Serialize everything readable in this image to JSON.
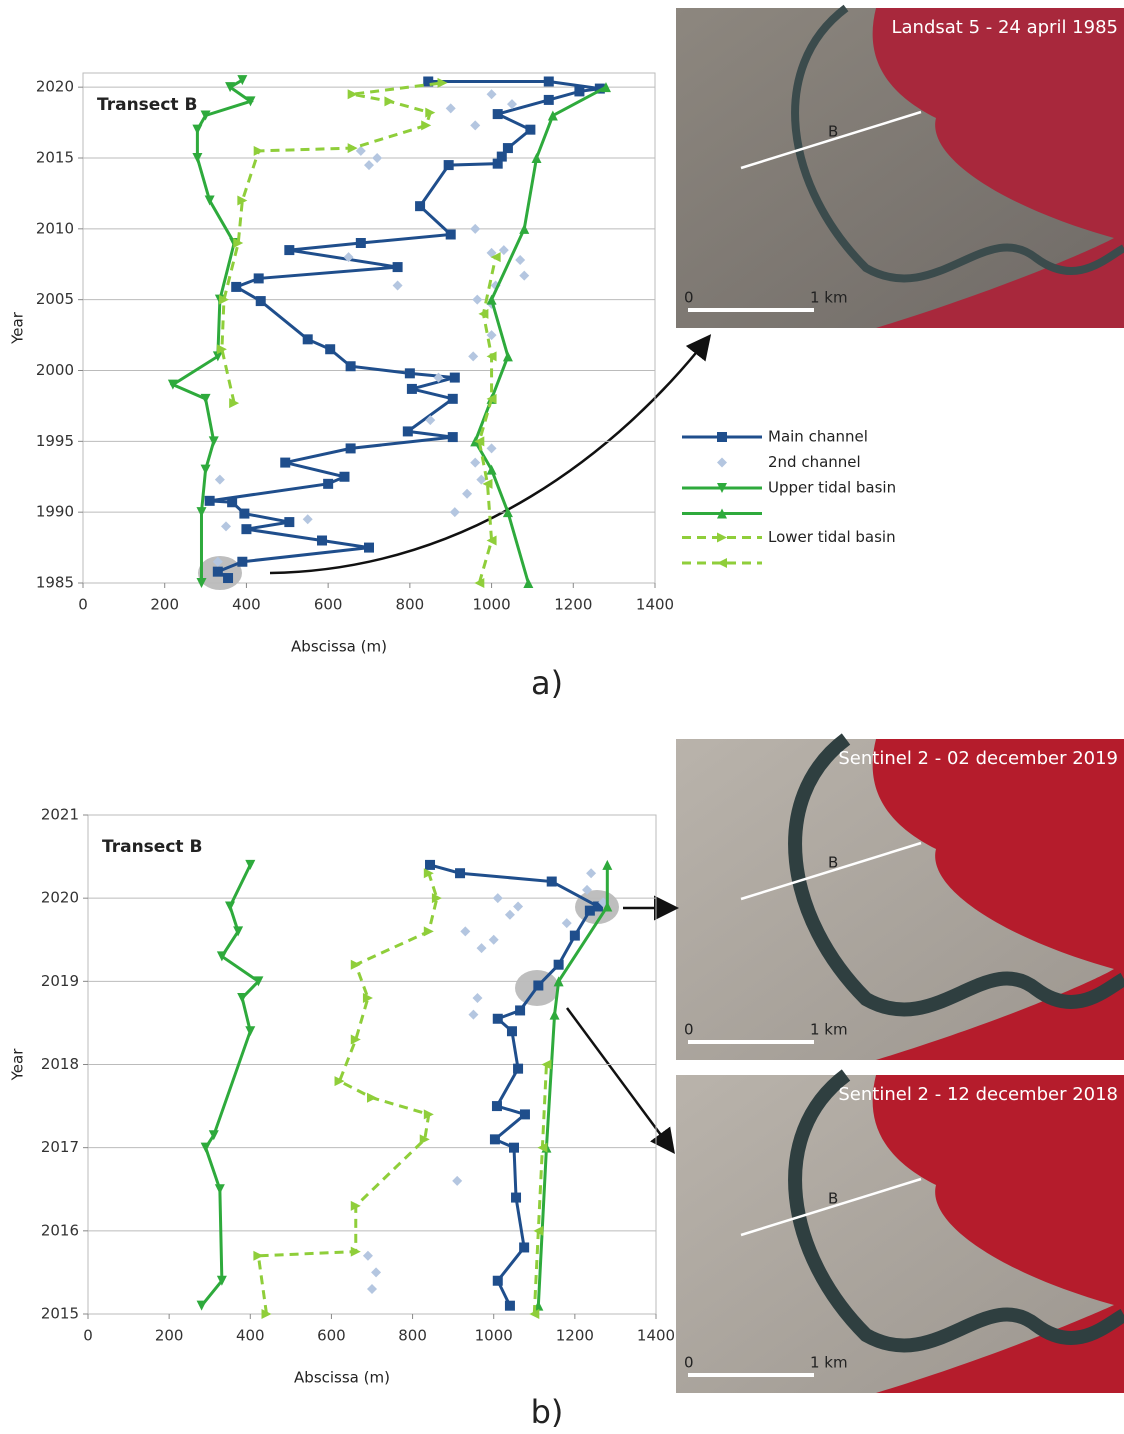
{
  "chart_data": [
    {
      "type": "line",
      "title": "Transect B",
      "x_label": "Abscissa (m)",
      "y_label": "Year",
      "xlim": [
        0,
        1400
      ],
      "xticks": [
        0,
        200,
        400,
        600,
        800,
        1000,
        1200,
        1400
      ],
      "ylim": [
        1985,
        2021
      ],
      "yticks": [
        1985,
        1990,
        1995,
        2000,
        2005,
        2010,
        2015,
        2020
      ],
      "grid": true,
      "legend": "right",
      "series": [
        {
          "name": "Main channel",
          "color": "#1f4e8c",
          "marker": "square",
          "line": true,
          "dash": false,
          "x": [
            355,
            330,
            390,
            700,
            585,
            400,
            505,
            395,
            365,
            310,
            600,
            640,
            495,
            655,
            905,
            795,
            905,
            805,
            910,
            800,
            655,
            605,
            550,
            435,
            375,
            430,
            770,
            505,
            680,
            900,
            825,
            895,
            1015,
            1025,
            1040,
            1095,
            1015,
            1140,
            1215,
            1265,
            1140,
            845
          ],
          "values": [
            1985.35,
            1985.8,
            1986.5,
            1987.5,
            1988,
            1988.8,
            1989.3,
            1989.9,
            1990.7,
            1990.8,
            1992,
            1992.5,
            1993.5,
            1994.5,
            1995.3,
            1995.7,
            1998,
            1998.7,
            1999.5,
            1999.8,
            2000.3,
            2001.5,
            2002.2,
            2004.9,
            2005.9,
            2006.5,
            2007.3,
            2008.5,
            2009,
            2009.6,
            2011.6,
            2014.5,
            2014.6,
            2015.1,
            2015.7,
            2017,
            2018.1,
            2019.1,
            2019.7,
            2019.9,
            2020.4,
            2020.4
          ]
        },
        {
          "name": "2nd channel",
          "color": "#b4c6e0",
          "marker": "diamond",
          "line": false,
          "dash": false,
          "x": [
            330,
            350,
            335,
            550,
            910,
            940,
            975,
            960,
            1000,
            850,
            870,
            955,
            1000,
            965,
            1000,
            1010,
            1080,
            1030,
            1000,
            650,
            770,
            1070,
            960,
            700,
            680,
            720,
            900,
            960,
            1050,
            1000
          ],
          "values": [
            1986.5,
            1989,
            1992.3,
            1989.5,
            1990,
            1991.3,
            1992.3,
            1993.5,
            1994.5,
            1996.5,
            1999.5,
            2001,
            2002.5,
            2005,
            2004.7,
            2006,
            2006.7,
            2008.5,
            2008.3,
            2008,
            2006,
            2007.8,
            2010,
            2014.5,
            2015.5,
            2015,
            2018.5,
            2017.3,
            2018.8,
            2019.5
          ]
        },
        {
          "name": "Upper tidal basin",
          "color": "#2eaa3c",
          "marker": "tri-down",
          "line": true,
          "dash": false,
          "x": [
            290,
            290,
            300,
            320,
            300,
            220,
            330,
            335,
            370,
            310,
            280,
            280,
            300,
            410,
            360,
            390
          ],
          "values": [
            1985,
            1990,
            1993,
            1995,
            1998,
            1999,
            2001,
            2005,
            2009,
            2012,
            2015,
            2017,
            2018,
            2019,
            2020,
            2020.5
          ]
        },
        {
          "color": "#2eaa3c",
          "marker": "tri-up",
          "line": true,
          "dash": false,
          "x": [
            1090,
            1040,
            1000,
            960,
            1000,
            1040,
            1000,
            1080,
            1110,
            1150,
            1280
          ],
          "values": [
            1985,
            1990,
            1993,
            1995,
            1998,
            2001,
            2005,
            2010,
            2015,
            2018,
            2020
          ]
        },
        {
          "name": "Lower tidal basin",
          "color": "#8fce3a",
          "marker": "tri-right",
          "line": true,
          "dash": true,
          "x": [
            370,
            340,
            345,
            380,
            390,
            430,
            660,
            840,
            850,
            750,
            660,
            880
          ],
          "values": [
            1997.7,
            2001.5,
            2005,
            2009,
            2012,
            2015.5,
            2015.7,
            2017.3,
            2018.2,
            2019,
            2019.5,
            2020.3
          ]
        },
        {
          "color": "#8fce3a",
          "marker": "tri-left",
          "line": true,
          "dash": true,
          "x": [
            970,
            1000,
            990,
            970,
            1000,
            1000,
            980,
            1010
          ],
          "values": [
            1985,
            1988,
            1992,
            1995,
            1998,
            2001,
            2004,
            2008
          ]
        }
      ]
    },
    {
      "type": "line",
      "title": "Transect B",
      "x_label": "Abscissa (m)",
      "y_label": "Year",
      "xlim": [
        0,
        1400
      ],
      "xticks": [
        0,
        200,
        400,
        600,
        800,
        1000,
        1200,
        1400
      ],
      "ylim": [
        2015,
        2021
      ],
      "yticks": [
        2015,
        2016,
        2017,
        2018,
        2019,
        2020,
        2021
      ],
      "grid": true,
      "series": [
        {
          "color": "#1f4e8c",
          "marker": "square",
          "line": true,
          "dash": false,
          "x": [
            1040,
            1010,
            1075,
            1055,
            1050,
            1003,
            1077,
            1008,
            1060,
            1045,
            1010,
            1065,
            1110,
            1160,
            1200,
            1237,
            1257,
            1143,
            917,
            843
          ],
          "values": [
            2015.1,
            2015.4,
            2015.8,
            2016.4,
            2017,
            2017.1,
            2017.4,
            2017.5,
            2017.95,
            2018.4,
            2018.55,
            2018.65,
            2018.95,
            2019.2,
            2019.55,
            2019.85,
            2019.9,
            2020.2,
            2020.3,
            2020.4
          ]
        },
        {
          "color": "#b4c6e0",
          "marker": "diamond",
          "line": false,
          "dash": false,
          "x": [
            700,
            710,
            690,
            910,
            950,
            960,
            970,
            1000,
            1040,
            1060,
            930,
            1010,
            1240,
            1230,
            1270,
            1180
          ],
          "values": [
            2015.3,
            2015.5,
            2015.7,
            2016.6,
            2018.6,
            2018.8,
            2019.4,
            2019.5,
            2019.8,
            2019.9,
            2019.6,
            2020.0,
            2020.3,
            2020.1,
            2019.95,
            2019.7
          ]
        },
        {
          "color": "#2eaa3c",
          "marker": "tri-down",
          "line": true,
          "dash": false,
          "x": [
            280,
            330,
            325,
            290,
            310,
            400,
            380,
            420,
            330,
            370,
            350,
            400
          ],
          "values": [
            2015.1,
            2015.4,
            2016.5,
            2017,
            2017.15,
            2018.4,
            2018.8,
            2019,
            2019.3,
            2019.6,
            2019.9,
            2020.4
          ]
        },
        {
          "color": "#2eaa3c",
          "marker": "tri-up",
          "line": true,
          "dash": false,
          "x": [
            1110,
            1130,
            1150,
            1160,
            1280,
            1280
          ],
          "values": [
            2015.1,
            2017,
            2018.6,
            2019,
            2019.9,
            2020.4
          ]
        },
        {
          "color": "#8fce3a",
          "marker": "tri-right",
          "line": true,
          "dash": true,
          "x": [
            440,
            420,
            660,
            660,
            830,
            840,
            700,
            620,
            660,
            690,
            660,
            840,
            860,
            840
          ],
          "values": [
            2015,
            2015.7,
            2015.75,
            2016.3,
            2017.1,
            2017.4,
            2017.6,
            2017.8,
            2018.3,
            2018.8,
            2019.2,
            2019.6,
            2020,
            2020.3
          ]
        },
        {
          "color": "#8fce3a",
          "marker": "tri-left",
          "line": true,
          "dash": true,
          "x": [
            1100,
            1110,
            1120,
            1130
          ],
          "values": [
            2015,
            2016,
            2017,
            2018
          ]
        }
      ]
    }
  ],
  "images": [
    {
      "caption": "Landsat 5 - 24 april 1985",
      "scale_start": "0",
      "scale_end": "1 km",
      "transect": "B"
    },
    {
      "caption": "Sentinel 2 - 02 december 2019",
      "scale_start": "0",
      "scale_end": "1 km",
      "transect": "B"
    },
    {
      "caption": "Sentinel 2 - 12 december 2018",
      "scale_start": "0",
      "scale_end": "1 km",
      "transect": "B"
    }
  ],
  "panel_labels": [
    "a)",
    "b)"
  ]
}
